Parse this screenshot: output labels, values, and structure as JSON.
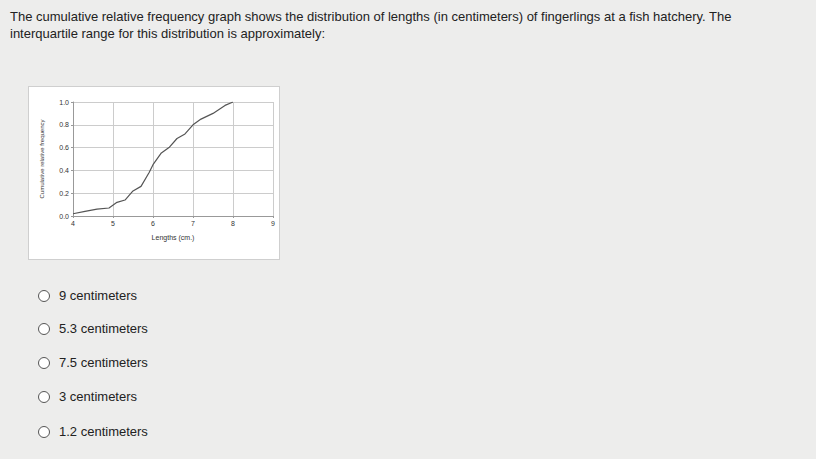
{
  "question": [
    "The cumulative relative frequency graph shows the distribution of lengths (in centimeters) of fingerlings at a fish hatchery. The",
    "interquartile range for this distribution is approximately:"
  ],
  "options": [
    "9 centimeters",
    "5.3 centimeters",
    "7.5 centimeters",
    "3 centimeters",
    "1.2 centimeters"
  ],
  "chart_data": {
    "type": "line",
    "x_label": "Lengths (cm.)",
    "y_label": "Cumulative relative frequency",
    "x": [
      4.0,
      4.3,
      4.6,
      4.9,
      5.1,
      5.3,
      5.5,
      5.7,
      5.9,
      6.0,
      6.2,
      6.4,
      6.6,
      6.8,
      7.0,
      7.2,
      7.5,
      7.8,
      8.0
    ],
    "values": [
      0.02,
      0.04,
      0.06,
      0.07,
      0.12,
      0.14,
      0.22,
      0.26,
      0.38,
      0.45,
      0.55,
      0.6,
      0.68,
      0.72,
      0.8,
      0.85,
      0.9,
      0.97,
      1.0
    ],
    "color": "#555555",
    "xlim": [
      4,
      9
    ],
    "xticks": [
      4,
      5,
      6,
      7,
      8,
      9
    ],
    "ylim": [
      0,
      1
    ],
    "yticks": [
      {
        "value": 0,
        "label": "0.0"
      },
      {
        "value": 0.2,
        "label": "0.2"
      },
      {
        "value": 0.4,
        "label": "0.4"
      },
      {
        "value": 0.6,
        "label": "0.6"
      },
      {
        "value": 0.8,
        "label": "0.8"
      },
      {
        "value": 1,
        "label": "1.0"
      }
    ],
    "grid": true
  }
}
